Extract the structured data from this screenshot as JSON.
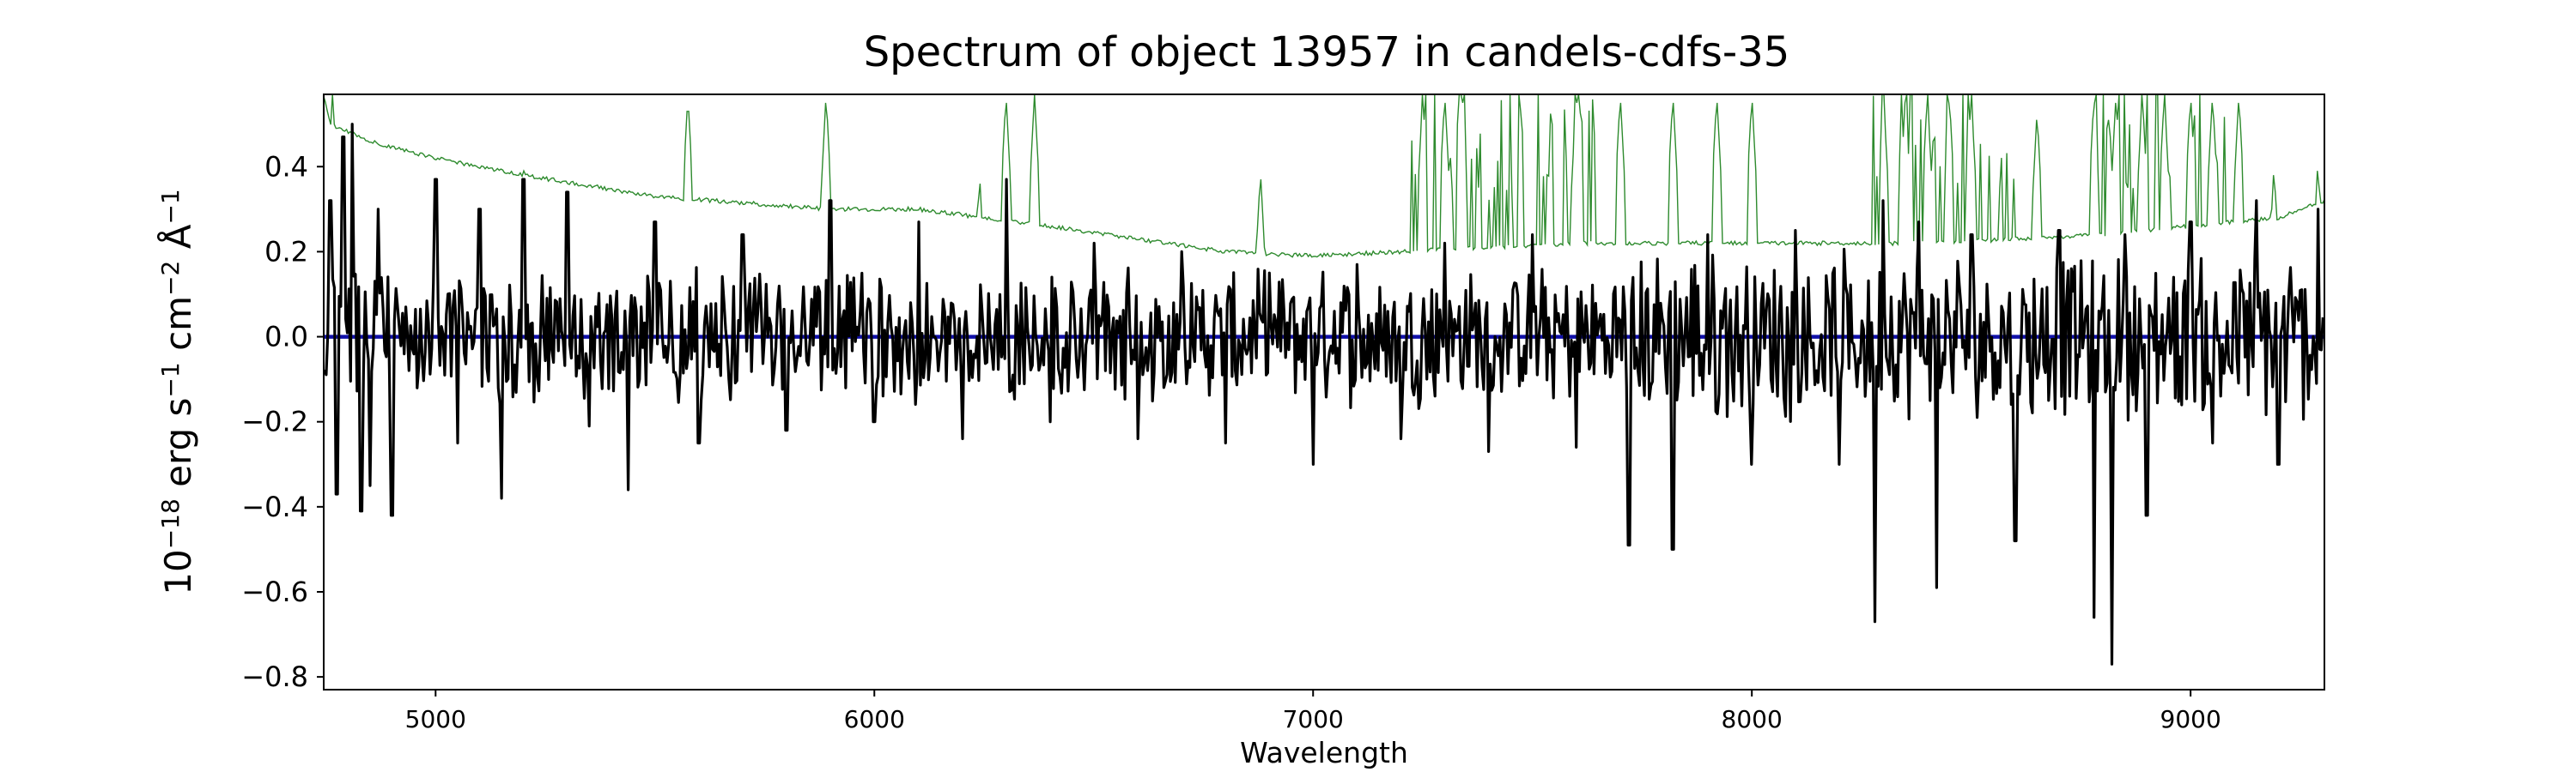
{
  "chart_data": {
    "type": "line",
    "title": "Spectrum of object 13957 in candels-cdfs-35",
    "xlabel": "Wavelength",
    "ylabel": {
      "base": "10",
      "base_exp": "−18",
      "unit1": " erg s",
      "unit1_exp": "−1",
      "unit2": " cm",
      "unit2_exp": "−2",
      "unit3": " Å",
      "unit3_exp": "−1"
    },
    "xlim": [
      4745,
      9305
    ],
    "ylim": [
      -0.83,
      0.57
    ],
    "x_ticks": [
      5000,
      6000,
      7000,
      8000,
      9000
    ],
    "y_ticks": [
      -0.8,
      -0.6,
      -0.4,
      -0.2,
      0.0,
      0.2,
      0.4
    ],
    "y_tick_labels": [
      "−0.8",
      "−0.6",
      "−0.4",
      "−0.2",
      "0.0",
      "0.2",
      "0.4"
    ],
    "grid": false,
    "legend": "none",
    "series": [
      {
        "role": "sky-error",
        "color": "#2e8b2e",
        "baseline": [
          [
            4745,
            0.57
          ],
          [
            4760,
            0.5
          ],
          [
            4850,
            0.46
          ],
          [
            5000,
            0.42
          ],
          [
            5200,
            0.38
          ],
          [
            5500,
            0.33
          ],
          [
            5900,
            0.3
          ],
          [
            6100,
            0.3
          ],
          [
            6400,
            0.26
          ],
          [
            6800,
            0.2
          ],
          [
            7000,
            0.19
          ],
          [
            7200,
            0.2
          ],
          [
            7600,
            0.22
          ],
          [
            8000,
            0.22
          ],
          [
            8400,
            0.22
          ],
          [
            8800,
            0.24
          ],
          [
            9200,
            0.28
          ],
          [
            9305,
            0.32
          ]
        ],
        "emission_lines": [
          [
            4765,
            0.57
          ],
          [
            5575,
            0.57
          ],
          [
            5890,
            0.57
          ],
          [
            6300,
            0.57
          ],
          [
            6365,
            0.57
          ],
          [
            5200,
            0.41
          ],
          [
            6240,
            0.38
          ],
          [
            6880,
            0.39
          ],
          [
            7250,
            0.57
          ],
          [
            7300,
            0.57
          ],
          [
            7340,
            0.57
          ],
          [
            7600,
            0.57
          ],
          [
            7700,
            0.57
          ],
          [
            7820,
            0.57
          ],
          [
            7920,
            0.57
          ],
          [
            8000,
            0.57
          ],
          [
            8300,
            0.57
          ],
          [
            8350,
            0.57
          ],
          [
            8400,
            0.57
          ],
          [
            8450,
            0.57
          ],
          [
            8500,
            0.57
          ],
          [
            8650,
            0.53
          ],
          [
            8780,
            0.57
          ],
          [
            8830,
            0.57
          ],
          [
            8890,
            0.57
          ],
          [
            8940,
            0.57
          ],
          [
            9000,
            0.57
          ],
          [
            9050,
            0.57
          ],
          [
            9110,
            0.57
          ],
          [
            9190,
            0.4
          ],
          [
            9290,
            0.41
          ]
        ]
      },
      {
        "role": "model",
        "color": "#1111aa",
        "points": [
          [
            4745,
            0.0
          ],
          [
            9305,
            0.0
          ]
        ]
      },
      {
        "role": "flux",
        "color": "#000000",
        "points": [
          [
            4760,
            0.32
          ],
          [
            4775,
            -0.37
          ],
          [
            4790,
            0.47
          ],
          [
            4810,
            0.5
          ],
          [
            4830,
            -0.41
          ],
          [
            4850,
            -0.35
          ],
          [
            4870,
            0.3
          ],
          [
            4900,
            -0.42
          ],
          [
            5000,
            0.37
          ],
          [
            5050,
            -0.25
          ],
          [
            5100,
            0.3
          ],
          [
            5150,
            -0.38
          ],
          [
            5200,
            0.37
          ],
          [
            5300,
            0.34
          ],
          [
            5350,
            -0.21
          ],
          [
            5440,
            -0.36
          ],
          [
            5500,
            0.27
          ],
          [
            5600,
            -0.25
          ],
          [
            5700,
            0.24
          ],
          [
            5800,
            -0.22
          ],
          [
            5900,
            0.32
          ],
          [
            6000,
            -0.2
          ],
          [
            6100,
            0.27
          ],
          [
            6200,
            -0.24
          ],
          [
            6300,
            0.37
          ],
          [
            6400,
            -0.2
          ],
          [
            6500,
            0.22
          ],
          [
            6600,
            -0.24
          ],
          [
            6700,
            0.2
          ],
          [
            6800,
            -0.25
          ],
          [
            6900,
            0.15
          ],
          [
            7000,
            -0.3
          ],
          [
            7100,
            0.17
          ],
          [
            7200,
            -0.24
          ],
          [
            7300,
            0.22
          ],
          [
            7400,
            -0.27
          ],
          [
            7500,
            0.24
          ],
          [
            7600,
            -0.26
          ],
          [
            7720,
            -0.49
          ],
          [
            7820,
            -0.5
          ],
          [
            7900,
            0.24
          ],
          [
            8000,
            -0.3
          ],
          [
            8100,
            0.25
          ],
          [
            8200,
            -0.3
          ],
          [
            8280,
            -0.67
          ],
          [
            8300,
            0.32
          ],
          [
            8380,
            0.27
          ],
          [
            8420,
            -0.59
          ],
          [
            8500,
            0.24
          ],
          [
            8600,
            -0.48
          ],
          [
            8700,
            0.25
          ],
          [
            8780,
            -0.66
          ],
          [
            8820,
            -0.77
          ],
          [
            8850,
            0.24
          ],
          [
            8900,
            -0.42
          ],
          [
            9000,
            0.27
          ],
          [
            9050,
            -0.25
          ],
          [
            9150,
            0.32
          ],
          [
            9200,
            -0.3
          ],
          [
            9290,
            0.3
          ]
        ]
      }
    ]
  }
}
